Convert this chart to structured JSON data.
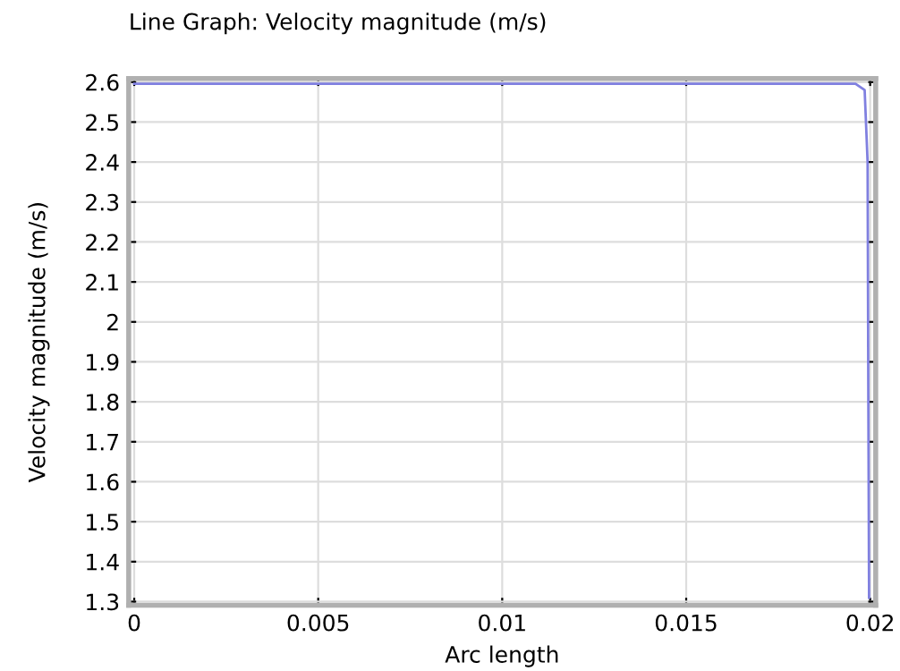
{
  "chart_data": {
    "type": "line",
    "title": "Line Graph: Velocity magnitude (m/s)",
    "xlabel": "Arc length",
    "ylabel": "Velocity magnitude (m/s)",
    "series": [
      {
        "color": "#8080e0",
        "x": [
          0,
          0.005,
          0.01,
          0.015,
          0.0196,
          0.01985,
          0.01993,
          0.01995,
          0.01997
        ],
        "values": [
          2.596,
          2.596,
          2.596,
          2.596,
          2.596,
          2.58,
          2.4,
          1.8,
          1.31
        ]
      }
    ],
    "xlim": [
      -0.00015,
      0.02015
    ],
    "ylim": [
      1.291,
      2.609
    ],
    "xticks": [
      0,
      0.005,
      0.01,
      0.015,
      0.02
    ],
    "yticks": [
      1.3,
      1.4,
      1.5,
      1.6,
      1.7,
      1.8,
      1.9,
      2,
      2.1,
      2.2,
      2.3,
      2.4,
      2.5,
      2.6
    ],
    "grid": true,
    "marker": "none",
    "line_style": "solid"
  }
}
